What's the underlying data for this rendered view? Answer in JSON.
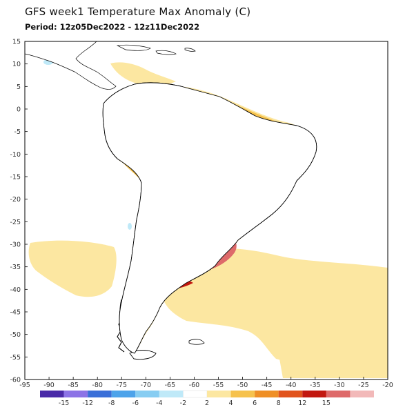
{
  "header": {
    "title": "GFS week1 Temperature Max Anomaly (C)",
    "period": "Period: 12z05Dec2022 - 12z11Dec2022"
  },
  "axes": {
    "lat_ticks": [
      "15",
      "10",
      "5",
      "0",
      "-5",
      "-10",
      "-15",
      "-20",
      "-25",
      "-30",
      "-35",
      "-40",
      "-45",
      "-50",
      "-55",
      "-60"
    ],
    "lon_ticks": [
      "-95",
      "-90",
      "-85",
      "-80",
      "-75",
      "-70",
      "-65",
      "-60",
      "-55",
      "-50",
      "-45",
      "-40",
      "-35",
      "-30",
      "-25",
      "-20"
    ]
  },
  "colorbar": {
    "colors": [
      "#4a2aa8",
      "#8c73e6",
      "#3a6fd8",
      "#4da3ea",
      "#87cdf2",
      "#bfe9f8",
      "#ffffff",
      "#fce7a1",
      "#f6c24d",
      "#ef8f25",
      "#e1531d",
      "#c2170f",
      "#de6a6a",
      "#f2b9b9"
    ],
    "labels": [
      "-15",
      "-12",
      "-8",
      "-6",
      "-4",
      "-2",
      "2",
      "4",
      "6",
      "8",
      "12",
      "15"
    ]
  },
  "map": {
    "land_color": "#ffffff",
    "coast_color": "#000000"
  }
}
